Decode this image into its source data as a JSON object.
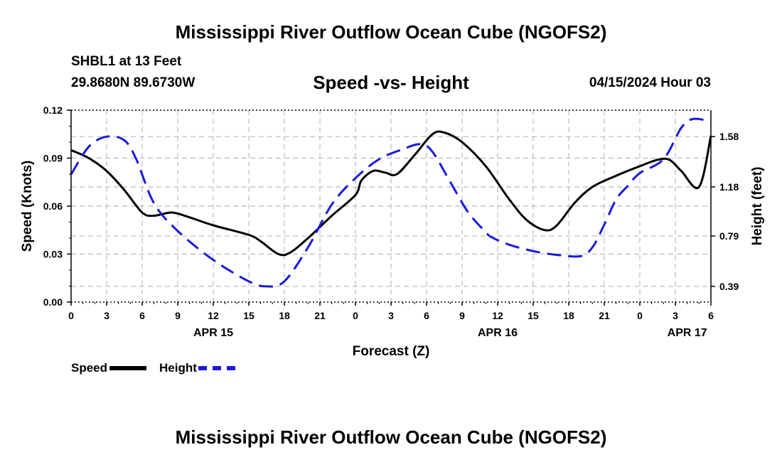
{
  "page": {
    "title": "Mississippi River Outflow Ocean Cube (NGOFS2)",
    "footer_title": "Mississippi River Outflow Ocean Cube (NGOFS2)"
  },
  "station": {
    "name": "SHBL1 at 13 Feet",
    "coords": "29.8680N  89.6730W"
  },
  "colors": {
    "speed": "#000000",
    "height": "#1a1adc",
    "grid": "#bbbbbb"
  },
  "chart_data": {
    "type": "line",
    "title": "Speed -vs- Height",
    "datetime": "04/15/2024 Hour 03",
    "xlabel": "Forecast (Z)",
    "ylabel": "Speed (Knots)",
    "y2label": "Height (feet)",
    "xlim": [
      0,
      54
    ],
    "ylim": [
      0,
      0.12
    ],
    "y2lim": [
      0.265,
      1.79
    ],
    "x_ticks": [
      0,
      3,
      6,
      9,
      12,
      15,
      18,
      21,
      24,
      27,
      30,
      33,
      36,
      39,
      42,
      45,
      48,
      51,
      54
    ],
    "x_tick_labels": [
      "0",
      "3",
      "6",
      "9",
      "12",
      "15",
      "18",
      "21",
      "0",
      "3",
      "6",
      "9",
      "12",
      "15",
      "18",
      "21",
      "0",
      "3",
      "6"
    ],
    "y_ticks": [
      0,
      0.03,
      0.06,
      0.09,
      0.12
    ],
    "y_tick_labels": [
      "0.00",
      "0.03",
      "0.06",
      "0.09",
      "0.12"
    ],
    "y2_ticks": [
      0.39,
      0.79,
      1.18,
      1.58
    ],
    "y2_tick_labels": [
      "0.39",
      "0.79",
      "1.18",
      "1.58"
    ],
    "date_labels": [
      {
        "x": 12,
        "label": "APR 15"
      },
      {
        "x": 36,
        "label": "APR 16"
      },
      {
        "x": 52,
        "label": "APR 17"
      }
    ],
    "series": [
      {
        "name": "Speed",
        "axis": "left",
        "style": "solid",
        "x": [
          0,
          1.5,
          3,
          4.5,
          6,
          7,
          8.5,
          10,
          12,
          15,
          16,
          17.5,
          18.5,
          20,
          22,
          24,
          24.5,
          25.5,
          26.5,
          27.5,
          29,
          30.5,
          31.5,
          33,
          35,
          37,
          38.5,
          40,
          41,
          42.5,
          44,
          46,
          48,
          49.5,
          50.5,
          51.5,
          53,
          54
        ],
        "values": [
          0.095,
          0.09,
          0.082,
          0.07,
          0.056,
          0.054,
          0.056,
          0.053,
          0.048,
          0.042,
          0.038,
          0.03,
          0.031,
          0.04,
          0.054,
          0.067,
          0.076,
          0.082,
          0.081,
          0.08,
          0.092,
          0.105,
          0.106,
          0.1,
          0.085,
          0.064,
          0.051,
          0.045,
          0.048,
          0.062,
          0.072,
          0.079,
          0.085,
          0.089,
          0.089,
          0.082,
          0.072,
          0.104
        ]
      },
      {
        "name": "Height",
        "axis": "right",
        "style": "dashed",
        "x": [
          0,
          1.5,
          3,
          4.5,
          5.5,
          7,
          9,
          12,
          15,
          16.5,
          18,
          20,
          22,
          24,
          26,
          28,
          29.5,
          30.5,
          32,
          33.5,
          35,
          35.5,
          37,
          39,
          41,
          43,
          44,
          45,
          46,
          47,
          48,
          50,
          51.5,
          52.5,
          54
        ],
        "values": [
          1.28,
          1.5,
          1.58,
          1.55,
          1.4,
          1.05,
          0.83,
          0.6,
          0.43,
          0.39,
          0.43,
          0.7,
          1.04,
          1.25,
          1.4,
          1.48,
          1.52,
          1.46,
          1.22,
          0.98,
          0.82,
          0.78,
          0.72,
          0.67,
          0.64,
          0.63,
          0.7,
          0.88,
          1.08,
          1.19,
          1.29,
          1.4,
          1.65,
          1.72,
          1.7
        ]
      }
    ]
  },
  "legend": [
    {
      "label": "Speed",
      "series": "Speed"
    },
    {
      "label": "Height",
      "series": "Height"
    }
  ]
}
